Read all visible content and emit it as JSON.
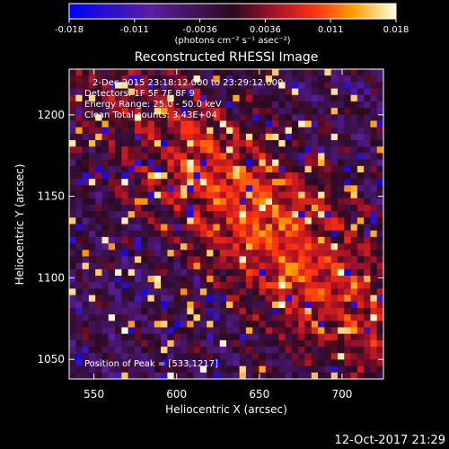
{
  "colorbar": {
    "ticks": [
      "-0.018",
      "-0.011",
      "-0.0036",
      "0.0036",
      "0.011",
      "0.018"
    ],
    "unit": "(photons cm⁻² s⁻¹ asec⁻²)",
    "range": [
      -0.018,
      0.018
    ]
  },
  "chart_data": {
    "type": "heatmap",
    "title": "Reconstructed RHESSI Image",
    "xlabel": "Heliocentric X (arcsec)",
    "ylabel": "Heliocentric Y (arcsec)",
    "xlim": [
      535,
      725
    ],
    "ylim": [
      1038,
      1228
    ],
    "xticks": [
      550,
      600,
      650,
      700
    ],
    "yticks": [
      1050,
      1100,
      1150,
      1200
    ],
    "colorscale": "blue-purple-red-yellow-white",
    "nx": 48,
    "ny": 48,
    "ridge_center": [
      655,
      1130
    ],
    "annotations": [
      "2-Dec-2015 23:18:12.000 to 23:29:12.000",
      "Detectors: 1F 5F 7F 8F 9",
      "Energy Range: 25.0 - 50.0 keV",
      "Clean    Total counts: 3.43E+04"
    ],
    "peak_text": "Position of Peak = [533,1217]"
  },
  "timestamp": "12-Oct-2017 21:29"
}
